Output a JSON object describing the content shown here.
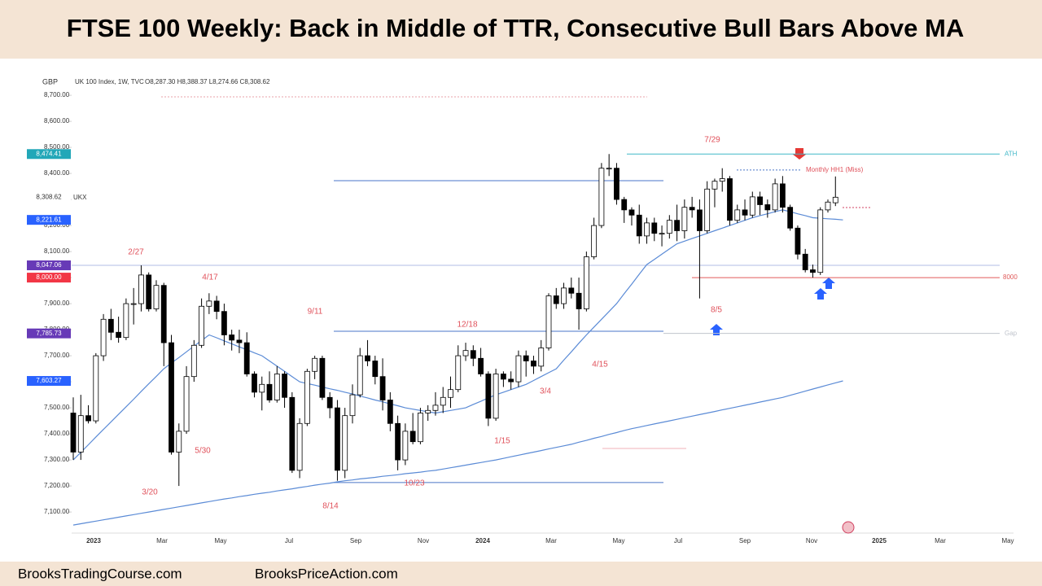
{
  "chart_data": {
    "type": "candlestick",
    "title": "FTSE 100 Weekly: Back in Middle of TTR, Consecutive Bull Bars Above MA",
    "currency": "GBP",
    "symbol_info": "UK 100 Index, 1W, TVC",
    "ohlc_info": "O8,287.30 H8,388.37 L8,274.66 C8,308.62",
    "symbol_tag": "UKX",
    "up_color": "#ffffff",
    "down_color": "#000000",
    "open": [
      7480,
      7330,
      7470,
      7450,
      7700,
      7840,
      7790,
      7770,
      7900,
      7900,
      8010,
      7880,
      7970,
      7750,
      7330,
      7410,
      7620,
      7740,
      7890,
      7910,
      7870,
      7780,
      7760,
      7750,
      7630,
      7560,
      7590,
      7530,
      7630,
      7540,
      7260,
      7440,
      7640,
      7690,
      7540,
      7500,
      7260,
      7470,
      7550,
      7700,
      7680,
      7620,
      7530,
      7440,
      7300,
      7410,
      7370,
      7480,
      7490,
      7510,
      7540,
      7570,
      7700,
      7720,
      7690,
      7630,
      7460,
      7630,
      7610,
      7600,
      7700,
      7680,
      7660,
      7730,
      7930,
      7900,
      7960,
      7940,
      7880,
      8080,
      8200,
      8420,
      8420,
      8300,
      8260,
      8240,
      8160,
      8210,
      8170,
      8170,
      8220,
      8180,
      8270,
      8260,
      8180,
      8340,
      8370,
      8380,
      8220,
      8260,
      8240,
      8310,
      8280,
      8260,
      8360,
      8270,
      8190,
      8090,
      8030,
      8020,
      8260,
      8287.3
    ],
    "high": [
      7540,
      7550,
      7510,
      7710,
      7860,
      7880,
      7850,
      7920,
      7960,
      8047.06,
      8020,
      7990,
      7980,
      7780,
      7440,
      7660,
      7760,
      7920,
      7940,
      7930,
      7900,
      7800,
      7800,
      7790,
      7640,
      7620,
      7640,
      7660,
      7640,
      7560,
      7460,
      7650,
      7700,
      7700,
      7560,
      7530,
      7500,
      7590,
      7730,
      7760,
      7700,
      7690,
      7560,
      7470,
      7440,
      7480,
      7500,
      7510,
      7560,
      7580,
      7620,
      7740,
      7750,
      7740,
      7730,
      7640,
      7650,
      7640,
      7640,
      7720,
      7720,
      7700,
      7760,
      7940,
      7960,
      7980,
      8000,
      8000,
      8100,
      8230,
      8440,
      8474.41,
      8440,
      8310,
      8270,
      8280,
      8230,
      8230,
      8200,
      8240,
      8280,
      8300,
      8310,
      8300,
      8370,
      8380,
      8420,
      8390,
      8280,
      8300,
      8330,
      8330,
      8300,
      8380,
      8390,
      8280,
      8200,
      8110,
      8050,
      8270,
      8300,
      8388.37
    ],
    "low": [
      7300,
      7300,
      7440,
      7440,
      7680,
      7760,
      7750,
      7760,
      7820,
      7870,
      7870,
      7870,
      7660,
      7320,
      7200,
      7400,
      7600,
      7730,
      7860,
      7840,
      7740,
      7720,
      7710,
      7620,
      7540,
      7490,
      7520,
      7520,
      7500,
      7250,
      7230,
      7430,
      7610,
      7530,
      7460,
      7220,
      7230,
      7440,
      7540,
      7660,
      7590,
      7490,
      7410,
      7260,
      7280,
      7360,
      7360,
      7450,
      7470,
      7480,
      7500,
      7560,
      7680,
      7660,
      7620,
      7430,
      7450,
      7580,
      7570,
      7580,
      7620,
      7630,
      7640,
      7720,
      7880,
      7880,
      7920,
      7800,
      7870,
      8070,
      8190,
      8390,
      8280,
      8210,
      8200,
      8130,
      8130,
      8140,
      8120,
      8150,
      8140,
      8150,
      8230,
      7920,
      8170,
      8270,
      8330,
      8200,
      8210,
      8220,
      8230,
      8240,
      8230,
      8250,
      8250,
      8180,
      8070,
      8020,
      8000,
      8010,
      8250,
      8274.66
    ],
    "close": [
      7330,
      7470,
      7450,
      7700,
      7840,
      7790,
      7770,
      7900,
      7900,
      8010,
      7880,
      7970,
      7750,
      7330,
      7410,
      7620,
      7740,
      7890,
      7910,
      7870,
      7780,
      7760,
      7750,
      7630,
      7560,
      7590,
      7530,
      7630,
      7540,
      7260,
      7440,
      7640,
      7690,
      7540,
      7500,
      7260,
      7470,
      7550,
      7700,
      7680,
      7620,
      7530,
      7440,
      7300,
      7410,
      7370,
      7480,
      7490,
      7510,
      7540,
      7570,
      7700,
      7720,
      7690,
      7630,
      7460,
      7630,
      7610,
      7600,
      7700,
      7680,
      7660,
      7730,
      7930,
      7900,
      7960,
      7940,
      7880,
      8080,
      8200,
      8420,
      8420,
      8300,
      8260,
      8240,
      8160,
      8210,
      8170,
      8170,
      8220,
      8180,
      8270,
      8260,
      8180,
      8340,
      8370,
      8380,
      8220,
      8260,
      8240,
      8310,
      8280,
      8260,
      8360,
      8270,
      8190,
      8090,
      8030,
      8020,
      8260,
      8290,
      8308.62
    ],
    "ma_series": [
      {
        "color": "#5b8bd6",
        "values": [
          7300,
          7329,
          7358,
          7388,
          7417,
          7446,
          7475,
          7504,
          7533,
          7563,
          7592,
          7621,
          7650,
          7672,
          7693,
          7715,
          7737,
          7758,
          7780,
          7769,
          7757,
          7746,
          7734,
          7723,
          7711,
          7700,
          7680,
          7660,
          7640,
          7620,
          7600,
          7593,
          7587,
          7580,
          7573,
          7567,
          7560,
          7553,
          7545,
          7538,
          7530,
          7523,
          7515,
          7508,
          7500,
          7495,
          7490,
          7485,
          7480,
          7485,
          7490,
          7495,
          7500,
          7513,
          7525,
          7538,
          7550,
          7560,
          7570,
          7580,
          7590,
          7605,
          7620,
          7635,
          7650,
          7683,
          7715,
          7748,
          7780,
          7810,
          7840,
          7870,
          7900,
          7938,
          7975,
          8013,
          8050,
          8070,
          8090,
          8110,
          8130,
          8140,
          8150,
          8160,
          8170,
          8180,
          8190,
          8200,
          8210,
          8220,
          8230,
          8238,
          8245,
          8253,
          8260,
          8253,
          8245,
          8238,
          8230,
          8228,
          8226,
          8224,
          8221.61
        ]
      },
      {
        "color": "#5b8bd6",
        "values": [
          7050,
          7055,
          7060,
          7065,
          7070,
          7075,
          7080,
          7085,
          7090,
          7095,
          7100,
          7105,
          7110,
          7115,
          7120,
          7125,
          7130,
          7135,
          7140,
          7145,
          7150,
          7154,
          7159,
          7163,
          7168,
          7172,
          7176,
          7181,
          7185,
          7189,
          7194,
          7198,
          7203,
          7207,
          7211,
          7216,
          7220,
          7223,
          7227,
          7230,
          7233,
          7237,
          7240,
          7243,
          7247,
          7250,
          7253,
          7257,
          7260,
          7265,
          7270,
          7275,
          7280,
          7285,
          7290,
          7295,
          7300,
          7306,
          7312,
          7318,
          7324,
          7330,
          7336,
          7342,
          7348,
          7354,
          7360,
          7368,
          7375,
          7383,
          7390,
          7398,
          7405,
          7413,
          7420,
          7426,
          7432,
          7438,
          7444,
          7450,
          7456,
          7462,
          7468,
          7474,
          7480,
          7486,
          7492,
          7498,
          7504,
          7510,
          7516,
          7522,
          7528,
          7534,
          7540,
          7548,
          7556,
          7564,
          7572,
          7580,
          7588,
          7596,
          7603.27
        ]
      }
    ],
    "ylim": [
      7019,
      8769
    ],
    "yticks": [
      {
        "value": 7100,
        "label": "7,100.00"
      },
      {
        "value": 7200,
        "label": "7,200.00"
      },
      {
        "value": 7300,
        "label": "7,300.00"
      },
      {
        "value": 7400,
        "label": "7,400.00"
      },
      {
        "value": 7500,
        "label": "7,500.00"
      },
      {
        "value": 7600,
        "label": "7,600.00"
      },
      {
        "value": 7700,
        "label": "7,700.00"
      },
      {
        "value": 7800,
        "label": "7,800.00"
      },
      {
        "value": 7900,
        "label": "7,900.00"
      },
      {
        "value": 8000,
        "label": "8,000.00"
      },
      {
        "value": 8100,
        "label": "8,100.00"
      },
      {
        "value": 8200,
        "label": "8,200.00"
      },
      {
        "value": 8300,
        "label": "8,300.00"
      },
      {
        "value": 8400,
        "label": "8,400.00"
      },
      {
        "value": 8500,
        "label": "8,500.00"
      },
      {
        "value": 8600,
        "label": "8,600.00"
      },
      {
        "value": 8700,
        "label": "8,700.00"
      }
    ],
    "x_labels": [
      "2023",
      "Mar",
      "May",
      "Jul",
      "Sep",
      "Nov",
      "2024",
      "Mar",
      "May",
      "Jul",
      "Sep",
      "Nov",
      "2025",
      "Mar",
      "May"
    ],
    "price_markers": [
      {
        "value": 8474.41,
        "label": "8,474.41",
        "color": "#22a7b8"
      },
      {
        "value": 8308.62,
        "label": "8,308.62",
        "color": "#ffffff"
      },
      {
        "value": 8221.61,
        "label": "8,221.61",
        "color": "#2962ff"
      },
      {
        "value": 8047.06,
        "label": "8,047.06",
        "color": "#673ab7"
      },
      {
        "value": 8000,
        "label": "8,000.00",
        "color": "#f23645"
      },
      {
        "value": 7785.73,
        "label": "7,785.73",
        "color": "#673ab7"
      },
      {
        "value": 7603.27,
        "label": "7,603.27",
        "color": "#2962ff"
      }
    ],
    "levels": [
      {
        "value": 8474.41,
        "label": "ATH",
        "color": "#40b8c8"
      },
      {
        "value": 8372,
        "color": "#4a76c8"
      },
      {
        "value": 8047.06,
        "color": "#b0bde6"
      },
      {
        "value": 8000,
        "label": "8000",
        "color": "#e05a5a"
      },
      {
        "value": 7785.73,
        "label": "Gap",
        "color": "#c0c4cc"
      },
      {
        "value": 7794,
        "color": "#4a76c8"
      },
      {
        "value": 7213,
        "color": "#4a76c8"
      },
      {
        "value": 8694,
        "color": "#e8a0a8",
        "dashed": true
      },
      {
        "value": 8413,
        "label": "Monthly HH1 (Miss)",
        "color": "#4a76c8",
        "dashed": true
      },
      {
        "value": 8269,
        "color": "#d04060",
        "dashed": true
      },
      {
        "value": 7344,
        "color": "#f0b0b8"
      }
    ],
    "annotation_color": "#e0505a",
    "annotations": [
      "7/29",
      "2/27",
      "4/17",
      "9/11",
      "12/18",
      "8/5",
      "4/15",
      "3/4",
      "1/15",
      "5/30",
      "3/20",
      "10/23",
      "8/14"
    ]
  },
  "footer": [
    "BrooksTradingCourse.com",
    "BrooksPriceAction.com"
  ]
}
